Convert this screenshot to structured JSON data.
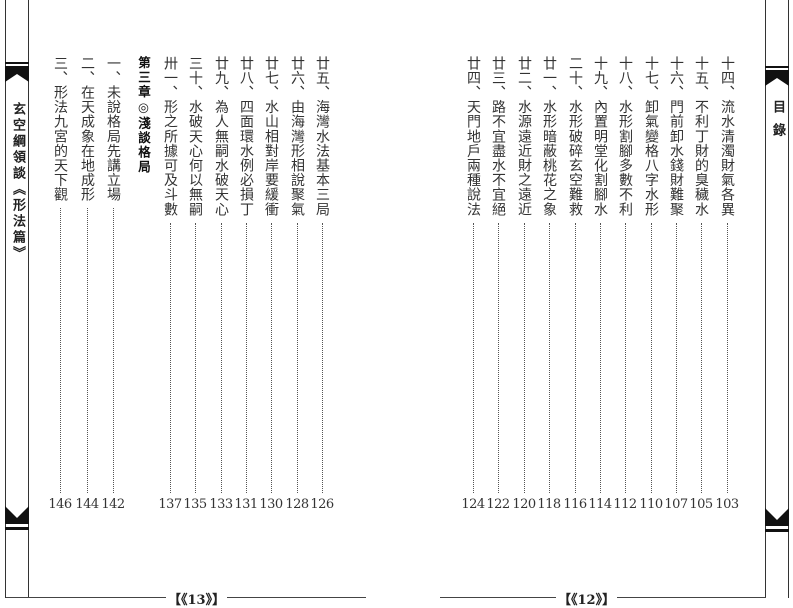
{
  "left_page": {
    "spine_title": "玄空綱領談《形法篇》",
    "folio": "【《13》】",
    "entries": [
      {
        "title": "廿五、海灣水法基本三局",
        "page": "126"
      },
      {
        "title": "廿六、由海灣形相說聚氣",
        "page": "128"
      },
      {
        "title": "廿七、水山相對岸要緩衝",
        "page": "130"
      },
      {
        "title": "廿八、四面環水例必損丁",
        "page": "131"
      },
      {
        "title": "廿九、為人無嗣水破天心",
        "page": "133"
      },
      {
        "title": "三十、水破天心何以無嗣",
        "page": "135"
      },
      {
        "title": "卅一、形之所據可及斗數",
        "page": "137"
      },
      {
        "title": "第三章◎淺談格局",
        "page": null,
        "heading": true
      },
      {
        "title": "一、未說格局先講立場",
        "page": "142"
      },
      {
        "title": "二、在天成象在地成形",
        "page": "144"
      },
      {
        "title": "三、形法九宮的天下觀",
        "page": "146"
      }
    ]
  },
  "right_page": {
    "spine_title": "目錄",
    "folio": "【《12》】",
    "entries": [
      {
        "title": "十四、流水清濁財氣各異",
        "page": "103"
      },
      {
        "title": "十五、不利丁財的臭穢水",
        "page": "105"
      },
      {
        "title": "十六、門前卸水錢財難聚",
        "page": "107"
      },
      {
        "title": "十七、卸氣變格八字水形",
        "page": "110"
      },
      {
        "title": "十八、水形割腳多數不利",
        "page": "112"
      },
      {
        "title": "十九、內置明堂化割腳水",
        "page": "114"
      },
      {
        "title": "二十、水形破碎玄空難救",
        "page": "116"
      },
      {
        "title": "廿一、水形暗蔽桃花之象",
        "page": "118"
      },
      {
        "title": "廿二、水源遠近財之遠近",
        "page": "120"
      },
      {
        "title": "廿三、路不宜盡水不宜絕",
        "page": "122"
      },
      {
        "title": "廿四、天門地戶兩種說法",
        "page": "124"
      }
    ]
  }
}
